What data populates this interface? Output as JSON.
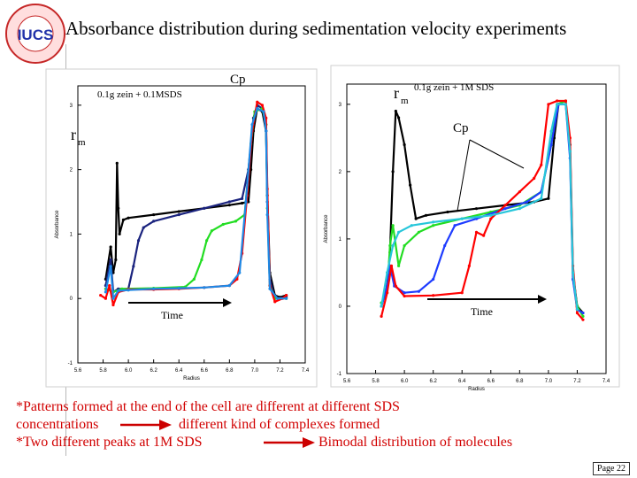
{
  "slide": {
    "title": "Absorbance distribution during  sedimentation velocity experiments",
    "logo_text": "IUCS",
    "logo_ring_text": "NSF Industry/University Center for Biosurfaces · COLUMBIA UNIVERSITY",
    "page": "Page 22"
  },
  "notes": {
    "line1": "*Patterns formed at the end of the cell are different at different SDS",
    "line2a": "concentrations",
    "line2b": "different kind of complexes formed",
    "line3a": "*Two different peaks at 1M SDS",
    "line3b": "Bimodal distribution of molecules"
  },
  "colors": {
    "note_text": "#d10000",
    "arrow": "#cc0000"
  },
  "chart_data": [
    {
      "type": "scatter",
      "title": "0.1g zein + 0.1MSDS",
      "xlabel": "Radius",
      "ylabel": "Absorbance",
      "xlim": [
        5.6,
        7.4
      ],
      "ylim": [
        -1,
        3.3
      ],
      "xticks": [
        "5.6",
        "5.8",
        "6.0",
        "6.2",
        "6.4",
        "6.6",
        "6.8",
        "7.0",
        "7.2",
        "7.4"
      ],
      "yticks": [
        "-1",
        "0",
        "1",
        "2",
        "3"
      ],
      "annotations": {
        "cp": "Cp",
        "rm": "r",
        "rm_sub": "m",
        "time": "Time"
      },
      "series": [
        {
          "color": "#000000",
          "points": [
            [
              5.82,
              0.3
            ],
            [
              5.86,
              0.8
            ],
            [
              5.88,
              0.4
            ],
            [
              5.9,
              0.6
            ],
            [
              5.91,
              2.1
            ],
            [
              5.92,
              1.4
            ],
            [
              5.93,
              1.0
            ],
            [
              5.96,
              1.22
            ],
            [
              6.0,
              1.25
            ],
            [
              6.2,
              1.3
            ],
            [
              6.4,
              1.35
            ],
            [
              6.6,
              1.4
            ],
            [
              6.8,
              1.45
            ],
            [
              6.9,
              1.48
            ],
            [
              6.95,
              1.5
            ],
            [
              6.97,
              2.0
            ],
            [
              6.99,
              2.6
            ],
            [
              7.02,
              2.95
            ],
            [
              7.06,
              2.9
            ],
            [
              7.09,
              2.6
            ],
            [
              7.1,
              1.6
            ],
            [
              7.12,
              0.4
            ],
            [
              7.16,
              0.05
            ],
            [
              7.2,
              0.02
            ],
            [
              7.25,
              0.05
            ]
          ]
        },
        {
          "color": "#1a237e",
          "points": [
            [
              5.82,
              0.2
            ],
            [
              5.86,
              0.6
            ],
            [
              5.88,
              0.1
            ],
            [
              5.92,
              0.15
            ],
            [
              6.0,
              0.15
            ],
            [
              6.04,
              0.5
            ],
            [
              6.08,
              0.9
            ],
            [
              6.12,
              1.1
            ],
            [
              6.2,
              1.2
            ],
            [
              6.4,
              1.3
            ],
            [
              6.6,
              1.4
            ],
            [
              6.8,
              1.5
            ],
            [
              6.9,
              1.55
            ],
            [
              6.95,
              2.0
            ],
            [
              6.99,
              2.8
            ],
            [
              7.02,
              3.0
            ],
            [
              7.06,
              2.95
            ],
            [
              7.09,
              2.7
            ],
            [
              7.1,
              1.5
            ],
            [
              7.12,
              0.3
            ],
            [
              7.16,
              0.0
            ],
            [
              7.25,
              0.02
            ]
          ]
        },
        {
          "color": "#22dd22",
          "points": [
            [
              5.82,
              0.15
            ],
            [
              5.88,
              0.1
            ],
            [
              5.95,
              0.15
            ],
            [
              6.2,
              0.16
            ],
            [
              6.45,
              0.18
            ],
            [
              6.52,
              0.3
            ],
            [
              6.58,
              0.6
            ],
            [
              6.62,
              0.9
            ],
            [
              6.66,
              1.05
            ],
            [
              6.75,
              1.15
            ],
            [
              6.85,
              1.2
            ],
            [
              6.92,
              1.3
            ],
            [
              6.97,
              2.4
            ],
            [
              7.0,
              2.9
            ],
            [
              7.06,
              2.95
            ],
            [
              7.09,
              2.7
            ],
            [
              7.1,
              1.4
            ],
            [
              7.12,
              0.2
            ],
            [
              7.16,
              0.0
            ],
            [
              7.25,
              0.0
            ]
          ]
        },
        {
          "color": "#ff0000",
          "points": [
            [
              5.78,
              0.05
            ],
            [
              5.82,
              0.0
            ],
            [
              5.85,
              0.2
            ],
            [
              5.88,
              -0.1
            ],
            [
              5.92,
              0.1
            ],
            [
              6.0,
              0.14
            ],
            [
              6.2,
              0.14
            ],
            [
              6.4,
              0.15
            ],
            [
              6.6,
              0.17
            ],
            [
              6.8,
              0.2
            ],
            [
              6.86,
              0.3
            ],
            [
              6.9,
              0.7
            ],
            [
              6.94,
              1.6
            ],
            [
              6.98,
              2.6
            ],
            [
              7.02,
              3.05
            ],
            [
              7.06,
              3.0
            ],
            [
              7.09,
              2.8
            ],
            [
              7.1,
              1.7
            ],
            [
              7.12,
              0.2
            ],
            [
              7.16,
              -0.05
            ],
            [
              7.22,
              0.0
            ],
            [
              7.25,
              0.05
            ]
          ]
        },
        {
          "color": "#1e88e5",
          "points": [
            [
              5.82,
              0.1
            ],
            [
              5.86,
              0.5
            ],
            [
              5.88,
              0.0
            ],
            [
              5.92,
              0.12
            ],
            [
              6.0,
              0.13
            ],
            [
              6.2,
              0.15
            ],
            [
              6.4,
              0.16
            ],
            [
              6.6,
              0.17
            ],
            [
              6.8,
              0.2
            ],
            [
              6.88,
              0.4
            ],
            [
              6.93,
              1.5
            ],
            [
              6.98,
              2.7
            ],
            [
              7.02,
              2.95
            ],
            [
              7.07,
              2.9
            ],
            [
              7.09,
              2.6
            ],
            [
              7.1,
              1.3
            ],
            [
              7.12,
              0.15
            ],
            [
              7.18,
              0.0
            ],
            [
              7.25,
              0.0
            ]
          ]
        }
      ]
    },
    {
      "type": "scatter",
      "title": "0.1g zein + 1M SDS",
      "xlabel": "Radius",
      "ylabel": "Absorbance",
      "xlim": [
        5.6,
        7.4
      ],
      "ylim": [
        -1,
        3.3
      ],
      "xticks": [
        "5.6",
        "5.8",
        "6.0",
        "6.2",
        "6.4",
        "6.6",
        "6.8",
        "7.0",
        "7.2",
        "7.4"
      ],
      "yticks": [
        "-1",
        "0",
        "1",
        "2",
        "3"
      ],
      "annotations": {
        "cp": "Cp",
        "rm": "r",
        "rm_sub": "m",
        "time": "Time"
      },
      "series": [
        {
          "color": "#000000",
          "points": [
            [
              5.84,
              0.0
            ],
            [
              5.88,
              0.3
            ],
            [
              5.9,
              0.8
            ],
            [
              5.92,
              2.0
            ],
            [
              5.94,
              2.9
            ],
            [
              5.96,
              2.8
            ],
            [
              6.0,
              2.4
            ],
            [
              6.04,
              1.8
            ],
            [
              6.08,
              1.3
            ],
            [
              6.15,
              1.35
            ],
            [
              6.3,
              1.4
            ],
            [
              6.5,
              1.45
            ],
            [
              6.7,
              1.5
            ],
            [
              6.9,
              1.55
            ],
            [
              7.0,
              1.6
            ],
            [
              7.04,
              2.5
            ],
            [
              7.07,
              3.0
            ],
            [
              7.12,
              3.0
            ],
            [
              7.15,
              2.4
            ],
            [
              7.17,
              0.5
            ],
            [
              7.2,
              0.0
            ],
            [
              7.24,
              -0.1
            ]
          ]
        },
        {
          "color": "#22dd22",
          "points": [
            [
              5.84,
              0.05
            ],
            [
              5.88,
              0.2
            ],
            [
              5.9,
              0.9
            ],
            [
              5.92,
              1.2
            ],
            [
              5.96,
              0.6
            ],
            [
              6.0,
              0.9
            ],
            [
              6.1,
              1.1
            ],
            [
              6.2,
              1.2
            ],
            [
              6.4,
              1.3
            ],
            [
              6.6,
              1.4
            ],
            [
              6.8,
              1.5
            ],
            [
              6.95,
              1.7
            ],
            [
              7.02,
              2.4
            ],
            [
              7.06,
              3.0
            ],
            [
              7.12,
              3.05
            ],
            [
              7.15,
              2.3
            ],
            [
              7.17,
              0.4
            ],
            [
              7.2,
              0.0
            ],
            [
              7.24,
              -0.15
            ]
          ]
        },
        {
          "color": "#1e3cff",
          "points": [
            [
              5.84,
              0.0
            ],
            [
              5.88,
              0.3
            ],
            [
              5.9,
              0.6
            ],
            [
              5.93,
              0.3
            ],
            [
              6.0,
              0.2
            ],
            [
              6.1,
              0.22
            ],
            [
              6.2,
              0.4
            ],
            [
              6.28,
              0.9
            ],
            [
              6.35,
              1.2
            ],
            [
              6.5,
              1.3
            ],
            [
              6.7,
              1.45
            ],
            [
              6.85,
              1.55
            ],
            [
              6.95,
              1.7
            ],
            [
              7.02,
              2.4
            ],
            [
              7.07,
              3.0
            ],
            [
              7.12,
              3.0
            ],
            [
              7.15,
              2.2
            ],
            [
              7.17,
              0.4
            ],
            [
              7.2,
              -0.05
            ],
            [
              7.24,
              -0.1
            ]
          ]
        },
        {
          "color": "#ff0000",
          "points": [
            [
              5.84,
              -0.15
            ],
            [
              5.88,
              0.2
            ],
            [
              5.91,
              0.6
            ],
            [
              5.94,
              0.3
            ],
            [
              6.0,
              0.15
            ],
            [
              6.2,
              0.16
            ],
            [
              6.4,
              0.2
            ],
            [
              6.45,
              0.6
            ],
            [
              6.5,
              1.1
            ],
            [
              6.55,
              1.05
            ],
            [
              6.6,
              1.3
            ],
            [
              6.7,
              1.5
            ],
            [
              6.8,
              1.7
            ],
            [
              6.9,
              1.9
            ],
            [
              6.95,
              2.1
            ],
            [
              7.0,
              3.0
            ],
            [
              7.06,
              3.05
            ],
            [
              7.12,
              3.05
            ],
            [
              7.15,
              2.5
            ],
            [
              7.17,
              0.6
            ],
            [
              7.2,
              -0.1
            ],
            [
              7.24,
              -0.2
            ]
          ]
        },
        {
          "color": "#26c6da",
          "points": [
            [
              5.84,
              0.0
            ],
            [
              5.88,
              0.5
            ],
            [
              5.92,
              0.9
            ],
            [
              5.96,
              1.1
            ],
            [
              6.05,
              1.2
            ],
            [
              6.2,
              1.25
            ],
            [
              6.4,
              1.3
            ],
            [
              6.6,
              1.35
            ],
            [
              6.8,
              1.45
            ],
            [
              6.95,
              1.6
            ],
            [
              7.02,
              2.6
            ],
            [
              7.06,
              3.0
            ],
            [
              7.12,
              3.0
            ],
            [
              7.15,
              2.3
            ],
            [
              7.17,
              0.5
            ],
            [
              7.2,
              -0.05
            ]
          ]
        }
      ]
    }
  ]
}
